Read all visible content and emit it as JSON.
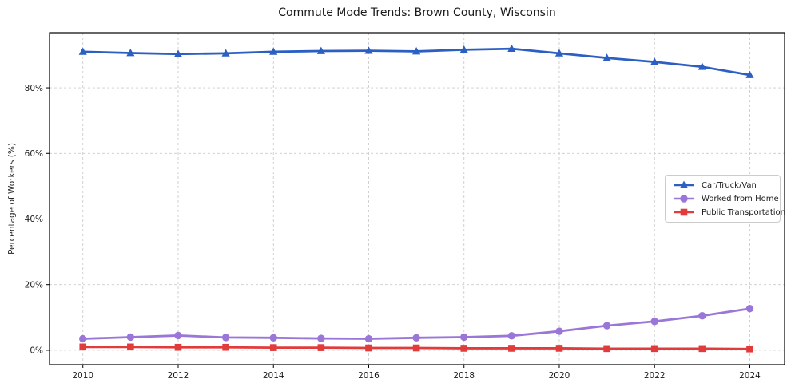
{
  "chart_data": {
    "type": "line",
    "title": "Commute Mode Trends: Brown County, Wisconsin",
    "ylabel": "Percentage of Workers (%)",
    "xlabel": "",
    "x": [
      2010,
      2011,
      2012,
      2013,
      2014,
      2015,
      2016,
      2017,
      2018,
      2019,
      2020,
      2021,
      2022,
      2023,
      2024
    ],
    "series": [
      {
        "name": "Car/Truck/Van",
        "color": "#2b5fc3",
        "marker": "triangle",
        "values": [
          91.0,
          90.6,
          90.3,
          90.5,
          91.0,
          91.2,
          91.3,
          91.1,
          91.6,
          91.9,
          90.5,
          89.1,
          87.9,
          86.4,
          83.9
        ]
      },
      {
        "name": "Worked from Home",
        "color": "#9b76d9",
        "marker": "circle",
        "values": [
          3.5,
          4.0,
          4.5,
          3.9,
          3.8,
          3.6,
          3.5,
          3.8,
          4.0,
          4.4,
          5.8,
          7.5,
          8.8,
          10.5,
          12.7
        ]
      },
      {
        "name": "Public Transportation",
        "color": "#e23b3b",
        "marker": "square",
        "values": [
          1.0,
          1.0,
          0.9,
          0.9,
          0.8,
          0.8,
          0.7,
          0.7,
          0.6,
          0.6,
          0.6,
          0.5,
          0.5,
          0.5,
          0.4
        ]
      }
    ],
    "xticks": {
      "values": [
        2010,
        2012,
        2014,
        2016,
        2018,
        2020,
        2022,
        2024
      ],
      "labels": [
        "2010",
        "2012",
        "2014",
        "2016",
        "2018",
        "2020",
        "2022",
        "2024"
      ]
    },
    "yticks": {
      "values": [
        0,
        20,
        40,
        60,
        80
      ],
      "labels": [
        "0%",
        "20%",
        "40%",
        "60%",
        "80%"
      ]
    },
    "xlim": [
      2009.3,
      2024.73
    ],
    "ylim": [
      -4.4,
      96.8
    ],
    "grid": true,
    "grid_style": "dashed",
    "grid_color": "#cccccc",
    "legend_position": "center right"
  }
}
